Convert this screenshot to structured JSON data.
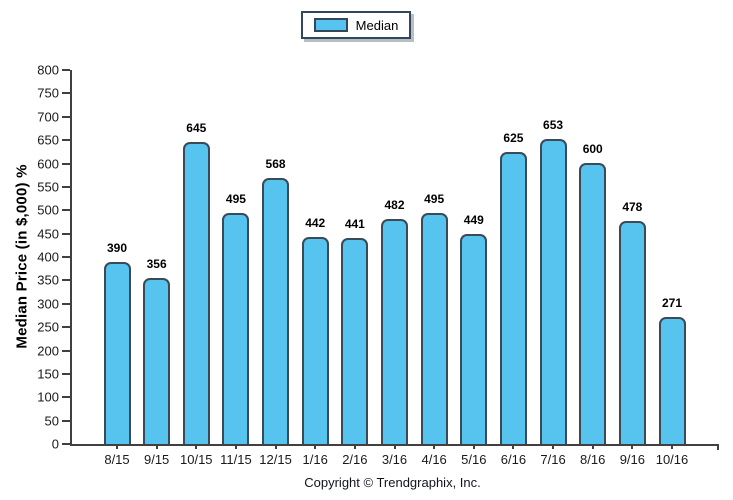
{
  "legend": {
    "label": "Median",
    "swatch_color": "#57c4ef"
  },
  "footer": {
    "copyright": "Copyright © Trendgraphix, Inc."
  },
  "colors": {
    "bar_fill": "#57c4ef",
    "bar_border": "#3a4a57",
    "axis": "#404040",
    "legend_border": "#33475c"
  },
  "chart_data": {
    "type": "bar",
    "title": "",
    "series_name": "Median",
    "categories": [
      "8/15",
      "9/15",
      "10/15",
      "11/15",
      "12/15",
      "1/16",
      "2/16",
      "3/16",
      "4/16",
      "5/16",
      "6/16",
      "7/16",
      "8/16",
      "9/16",
      "10/16"
    ],
    "values": [
      390,
      356,
      645,
      495,
      568,
      442,
      441,
      482,
      495,
      449,
      625,
      653,
      600,
      478,
      271
    ],
    "xlabel": "",
    "ylabel": "Median Price (in $,000) %",
    "ylim": [
      0,
      800
    ],
    "ytick_step": 50,
    "grid": false,
    "legend_position": "top-center",
    "value_labels": true
  }
}
